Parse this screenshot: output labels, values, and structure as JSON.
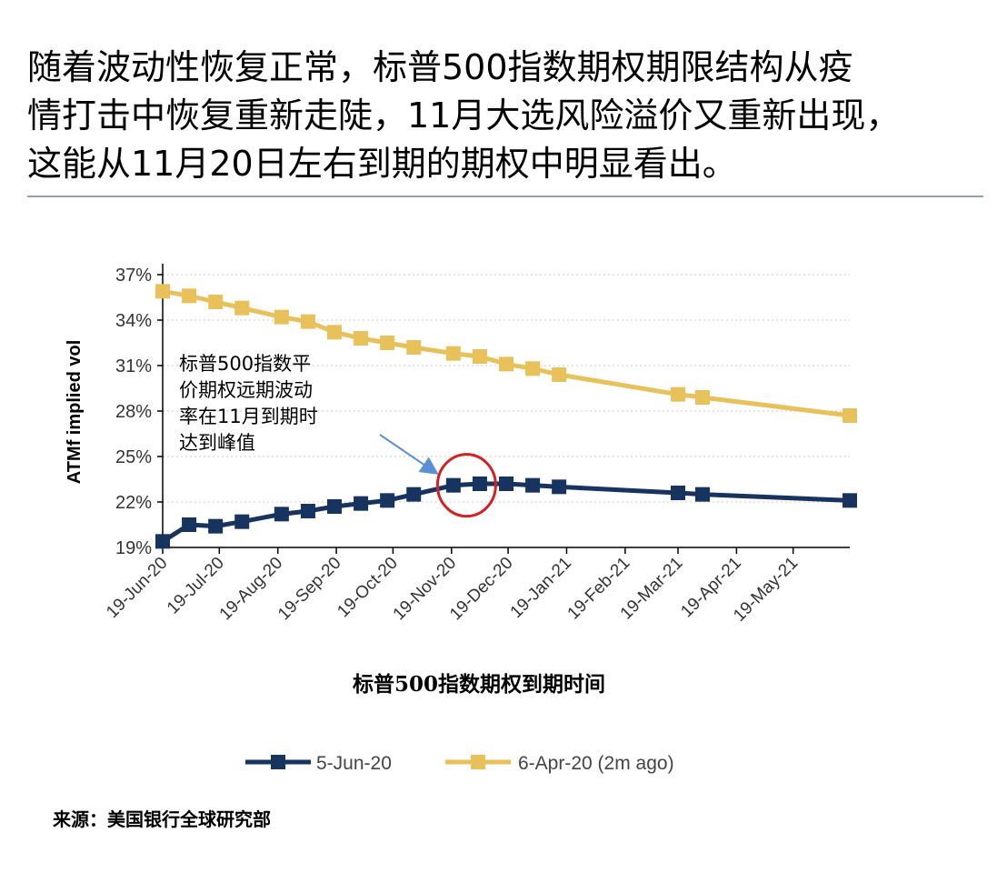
{
  "headline": {
    "lines": [
      "随着波动性恢复正常，标普500指数期权期限结构从疫",
      "情打击中恢复重新走陡，11月大选风险溢价又重新出现，",
      "这能从11月20日左右到期的期权中明显看出。"
    ]
  },
  "source": "来源：美国银行全球研究部",
  "colors": {
    "series_dark": "#17335f",
    "series_gold": "#e8c15a",
    "highlight_circle": "#d42020",
    "arrow": "#5b8fd6",
    "rule": "#8ca0bd"
  },
  "chart_data": {
    "type": "line",
    "ylabel": "ATMf implied vol",
    "xlabel": "标普500指数期权到期时间",
    "y_ticks": [
      "19%",
      "22%",
      "25%",
      "28%",
      "31%",
      "34%",
      "37%"
    ],
    "ylim": [
      19,
      37
    ],
    "x_ticks": [
      "19-Jun-20",
      "19-Jul-20",
      "19-Aug-20",
      "19-Sep-20",
      "19-Oct-20",
      "19-Nov-20",
      "19-Dec-20",
      "19-Jan-21",
      "19-Feb-21",
      "19-Mar-21",
      "19-Apr-21",
      "19-May-21"
    ],
    "grid": "horizontal-dotted",
    "legend_position": "bottom",
    "annotation": {
      "lines": [
        "标普500指数平",
        "价期权远期波动",
        "率在11月到期时",
        "达到峰值"
      ],
      "target": "19-Nov-20"
    },
    "series": [
      {
        "name": "5-Jun-20",
        "x": [
          "2020-06-19",
          "2020-07-03",
          "2020-07-17",
          "2020-07-31",
          "2020-08-21",
          "2020-09-04",
          "2020-09-18",
          "2020-10-02",
          "2020-10-16",
          "2020-10-30",
          "2020-11-20",
          "2020-12-04",
          "2020-12-18",
          "2021-01-01",
          "2021-01-15",
          "2021-03-19",
          "2021-04-01",
          "2021-06-18"
        ],
        "values": [
          19.4,
          20.5,
          20.4,
          20.7,
          21.2,
          21.4,
          21.7,
          21.9,
          22.1,
          22.5,
          23.1,
          23.2,
          23.2,
          23.1,
          23.0,
          22.6,
          22.5,
          22.1
        ]
      },
      {
        "name": "6-Apr-20 (2m ago)",
        "x": [
          "2020-06-19",
          "2020-07-03",
          "2020-07-17",
          "2020-07-31",
          "2020-08-21",
          "2020-09-04",
          "2020-09-18",
          "2020-10-02",
          "2020-10-16",
          "2020-10-30",
          "2020-11-20",
          "2020-12-04",
          "2020-12-18",
          "2021-01-01",
          "2021-01-15",
          "2021-03-19",
          "2021-04-01",
          "2021-06-18"
        ],
        "values": [
          35.9,
          35.6,
          35.2,
          34.8,
          34.2,
          33.9,
          33.2,
          32.8,
          32.5,
          32.2,
          31.8,
          31.6,
          31.1,
          30.8,
          30.4,
          29.1,
          28.9,
          27.7
        ]
      }
    ]
  }
}
